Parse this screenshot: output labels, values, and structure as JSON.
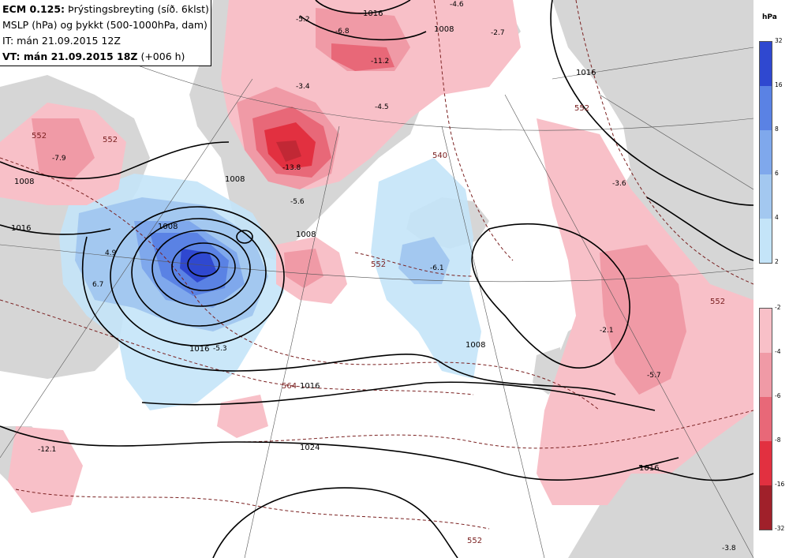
{
  "header": {
    "line1_bold": "ECM 0.125:",
    "line1_rest": " Þrýstingsbreyting (síð. 6klst)",
    "line2": "MSLP (hPa) og þykkt (500-1000hPa, dam)",
    "line3": "IT: mán 21.09.2015 12Z",
    "line4_bold": "VT: mán 21.09.2015 18Z",
    "line4_rest": " (+006 h)"
  },
  "colors": {
    "land": "#d6d6d6",
    "ocean": "#ffffff",
    "blue_2": "#c4e4f8",
    "blue_4": "#a3c8f0",
    "blue_6": "#7fa8ec",
    "blue_8": "#5a82e4",
    "blue_16": "#2f48d0",
    "red_2": "#f8c0c8",
    "red_4": "#f09aa6",
    "red_6": "#e86878",
    "red_8": "#e23040",
    "red_16": "#a0202a",
    "isobar": "#000000",
    "thickness": "#7a2020"
  },
  "colorbar": {
    "unit": "hPa",
    "positive_labels": [
      "32",
      "16",
      "8",
      "6",
      "4",
      "2"
    ],
    "negative_labels": [
      "-2",
      "-4",
      "-6",
      "-8",
      "-16",
      "-32"
    ]
  },
  "isobar_labels": [
    "1008",
    "1016",
    "1016",
    "1008",
    "1008",
    "1016",
    "1024",
    "1016",
    "1016",
    "1008",
    "1008",
    "1016",
    "1008"
  ],
  "thickness_labels": [
    "552",
    "564",
    "552",
    "540",
    "552",
    "552",
    "552",
    "552"
  ],
  "value_labels": [
    "-7.9",
    "4.9",
    "6.7",
    "-5.3",
    "-5.2",
    "-6.8",
    "-4.6",
    "-2.7",
    "-11.2",
    "-3.4",
    "-4.5",
    "-5.6",
    "-6.1",
    "-2.1",
    "-5.7",
    "-3.6",
    "-12.1",
    "-3.8",
    "-13.8"
  ]
}
